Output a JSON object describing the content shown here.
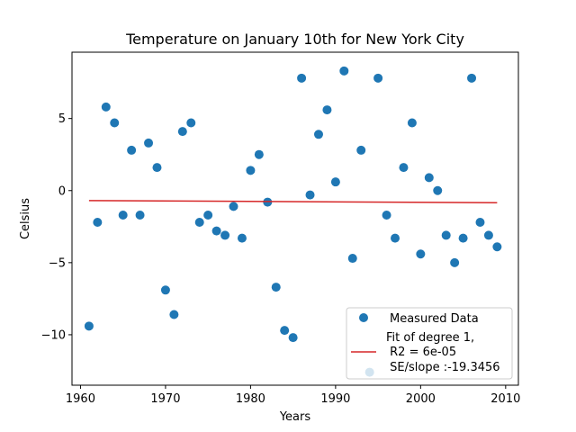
{
  "chart_data": {
    "type": "scatter",
    "title": "Temperature on January 10th for New York City",
    "xlabel": "Years",
    "ylabel": "Celsius",
    "xlim": [
      1959,
      2011.5
    ],
    "ylim": [
      -13.5,
      9.6
    ],
    "x_ticks": [
      1960,
      1970,
      1980,
      1990,
      2000,
      2010
    ],
    "y_ticks": [
      5,
      0,
      -5,
      -10
    ],
    "x_tick_labels": [
      "1960",
      "1970",
      "1980",
      "1990",
      "2000",
      "2010"
    ],
    "y_tick_labels": [
      "5",
      "0",
      "−5",
      "−10"
    ],
    "colors": {
      "points": "#1f77b4",
      "fit": "#d62728"
    },
    "series": [
      {
        "name": "Measured Data",
        "x": [
          1961,
          1962,
          1963,
          1964,
          1965,
          1966,
          1967,
          1968,
          1969,
          1970,
          1971,
          1972,
          1973,
          1974,
          1975,
          1976,
          1977,
          1978,
          1979,
          1980,
          1981,
          1982,
          1983,
          1984,
          1985,
          1986,
          1987,
          1988,
          1989,
          1990,
          1991,
          1992,
          1993,
          1994,
          1995,
          1996,
          1997,
          1998,
          1999,
          2000,
          2001,
          2002,
          2003,
          2004,
          2005,
          2006,
          2007,
          2008,
          2009
        ],
        "y": [
          -9.4,
          -2.2,
          5.8,
          4.7,
          -1.7,
          2.8,
          -1.7,
          3.3,
          1.6,
          -6.9,
          -8.6,
          4.1,
          4.7,
          -2.2,
          -1.7,
          -2.8,
          -3.1,
          -1.1,
          -3.3,
          1.4,
          2.5,
          -0.8,
          -6.7,
          -9.7,
          -10.2,
          7.8,
          -0.3,
          3.9,
          5.6,
          0.6,
          8.3,
          -4.7,
          2.8,
          -12.6,
          7.8,
          -1.7,
          -3.3,
          1.6,
          4.7,
          -4.4,
          0.9,
          0.0,
          -3.1,
          -5.0,
          -3.3,
          7.8,
          -2.2,
          -3.1,
          -3.9
        ]
      },
      {
        "name": "Fit of degree 1,\n R2 = 6e-05\n SE/slope :-19.3456",
        "type": "line",
        "x": [
          1961,
          2009
        ],
        "y": [
          -0.69,
          -0.84
        ]
      }
    ],
    "legend": {
      "placement": "lower-right",
      "entries": [
        {
          "label": "Measured Data"
        },
        {
          "label_lines": [
            "Fit of degree 1,",
            " R2 = 6e-05",
            " SE/slope :-19.3456"
          ]
        }
      ]
    },
    "grid": false
  }
}
